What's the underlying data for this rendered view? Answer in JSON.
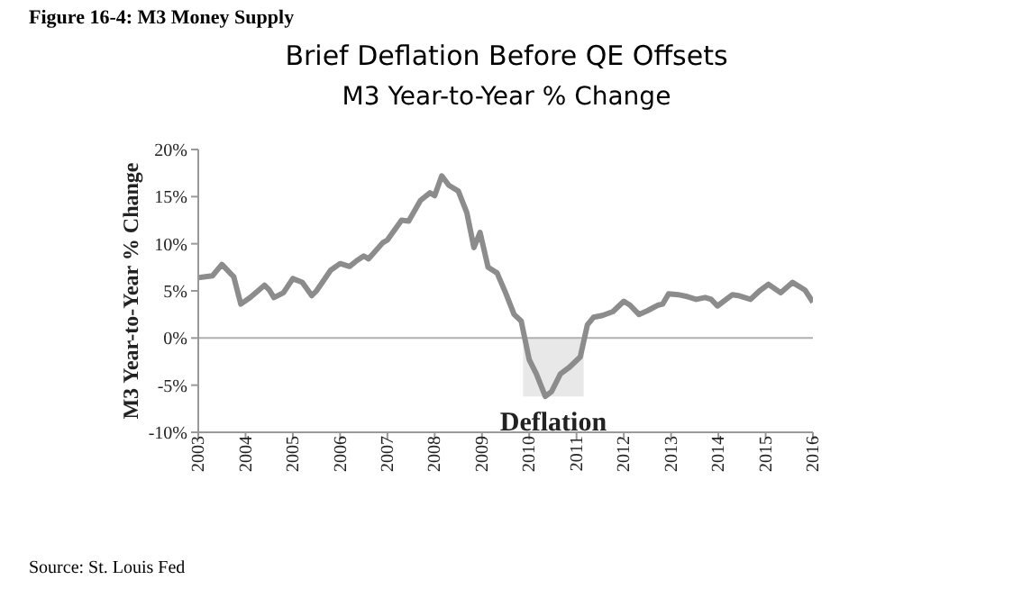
{
  "chart_data": {
    "type": "line",
    "title": "Brief Deflation Before QE Offsets",
    "subtitle": "M3 Year-to-Year % Change",
    "ylabel": "M3 Year-to-Year % Change",
    "annotations": [
      "Figure 16-4: M3 Money Supply",
      "Source: St. Louis Fed"
    ],
    "x": [
      2003.0,
      2003.3,
      2003.5,
      2003.75,
      2003.9,
      2004.1,
      2004.4,
      2004.5,
      2004.6,
      2004.8,
      2005.0,
      2005.2,
      2005.4,
      2005.5,
      2005.8,
      2006.0,
      2006.2,
      2006.35,
      2006.5,
      2006.6,
      2006.9,
      2007.0,
      2007.3,
      2007.45,
      2007.7,
      2007.9,
      2008.0,
      2008.15,
      2008.3,
      2008.5,
      2008.68,
      2008.83,
      2008.96,
      2009.13,
      2009.32,
      2009.5,
      2009.68,
      2009.83,
      2010.0,
      2010.15,
      2010.34,
      2010.47,
      2010.66,
      2010.85,
      2011.08,
      2011.23,
      2011.36,
      2011.55,
      2011.77,
      2012.0,
      2012.13,
      2012.32,
      2012.5,
      2012.73,
      2012.82,
      2012.95,
      2013.15,
      2013.34,
      2013.53,
      2013.72,
      2013.85,
      2013.98,
      2014.3,
      2014.42,
      2014.68,
      2014.87,
      2015.06,
      2015.32,
      2015.57,
      2015.83,
      2016.0
    ],
    "series": [
      {
        "color": "#8c8c8c",
        "values": [
          6.4,
          6.6,
          7.8,
          6.5,
          3.6,
          4.3,
          5.6,
          5.1,
          4.3,
          4.8,
          6.3,
          5.9,
          4.5,
          5.0,
          7.2,
          7.9,
          7.6,
          8.2,
          8.7,
          8.4,
          10.1,
          10.4,
          12.5,
          12.4,
          14.6,
          15.4,
          15.1,
          17.2,
          16.2,
          15.6,
          13.3,
          9.6,
          11.2,
          7.5,
          6.9,
          4.8,
          2.5,
          1.8,
          -2.3,
          -3.8,
          -6.2,
          -5.7,
          -3.8,
          -3.1,
          -2.0,
          1.4,
          2.2,
          2.4,
          2.8,
          3.9,
          3.5,
          2.5,
          2.9,
          3.5,
          3.6,
          4.7,
          4.6,
          4.4,
          4.1,
          4.3,
          4.1,
          3.4,
          4.6,
          4.5,
          4.1,
          5.0,
          5.7,
          4.8,
          5.9,
          5.1,
          3.8
        ]
      }
    ],
    "xlim": [
      2003,
      2016
    ],
    "xticks": [
      2003,
      2004,
      2005,
      2006,
      2007,
      2008,
      2009,
      2010,
      2011,
      2012,
      2013,
      2014,
      2015,
      2016
    ],
    "ylim": [
      -10,
      20
    ],
    "yticks": [
      {
        "value": -10,
        "label": "-10%"
      },
      {
        "value": -5,
        "label": "-5%"
      },
      {
        "value": 0,
        "label": "0%"
      },
      {
        "value": 5,
        "label": "5%"
      },
      {
        "value": 10,
        "label": "10%"
      },
      {
        "value": 15,
        "label": "15%"
      },
      {
        "value": 20,
        "label": "20%"
      }
    ],
    "ref_lines": [
      {
        "axis": "y",
        "value": 0,
        "color": "#b0b0b0"
      }
    ],
    "bands": [
      {
        "axis": "x",
        "from": 2009.87,
        "to": 2011.15,
        "label": "Deflation",
        "color": "#e8e8e8"
      }
    ],
    "grid": false,
    "legend": false,
    "marker": "none",
    "line_style": "solid"
  }
}
